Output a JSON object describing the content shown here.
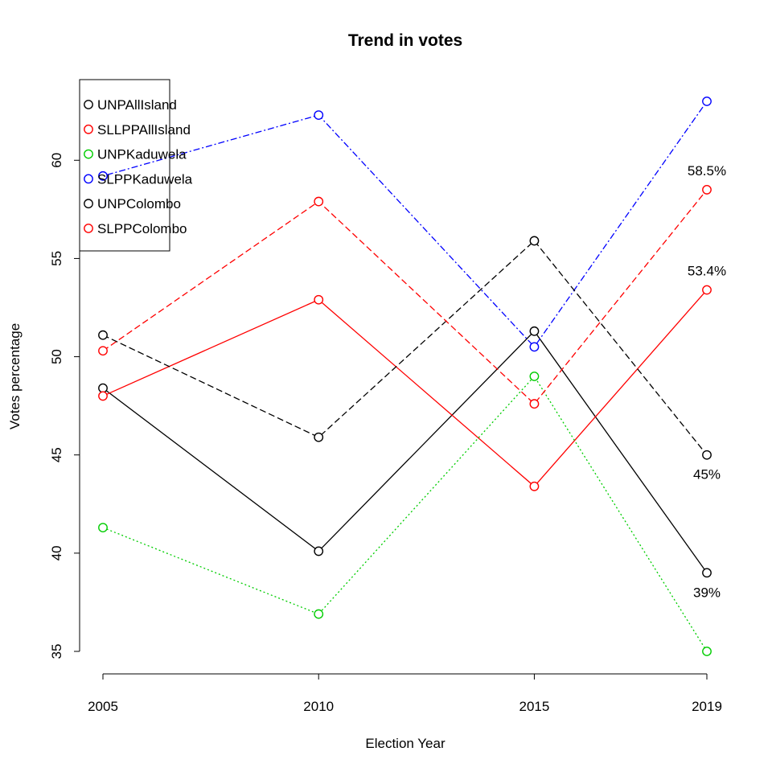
{
  "chart_data": {
    "type": "line",
    "title": "Trend in votes",
    "xlabel": "Election Year",
    "ylabel": "Votes percentage",
    "x": [
      2005,
      2010,
      2015,
      2019
    ],
    "x_tick_labels": [
      "2005",
      "2010",
      "2015",
      "2019"
    ],
    "y_ticks": [
      35,
      40,
      45,
      50,
      55,
      60
    ],
    "y_tick_labels": [
      "35",
      "40",
      "45",
      "50",
      "55",
      "60"
    ],
    "xlim": [
      2005,
      2019
    ],
    "ylim": [
      35,
      63
    ],
    "grid": false,
    "legend_position": "top-left",
    "series": [
      {
        "name": "UNPAllIsland",
        "color": "#000000",
        "dash": "solid",
        "values": [
          48.4,
          40.1,
          51.3,
          39.0
        ]
      },
      {
        "name": "SLLPPAllIsland",
        "color": "#ff0000",
        "dash": "solid",
        "values": [
          48.0,
          52.9,
          43.4,
          53.4
        ]
      },
      {
        "name": "UNPKaduwela",
        "color": "#00cd00",
        "dash": "dotted",
        "values": [
          41.3,
          36.9,
          49.0,
          35.0
        ]
      },
      {
        "name": "SLPPKaduwela",
        "color": "#0000ff",
        "dash": "dotdash",
        "values": [
          59.2,
          62.3,
          50.5,
          63.0
        ]
      },
      {
        "name": "UNPColombo",
        "color": "#000000",
        "dash": "dashed",
        "values": [
          51.1,
          45.9,
          55.9,
          45.0
        ]
      },
      {
        "name": "SLPPColombo",
        "color": "#ff0000",
        "dash": "dashed",
        "values": [
          50.3,
          57.9,
          47.6,
          58.5
        ]
      }
    ],
    "annotations": [
      {
        "text": "58.5%",
        "x": 2019,
        "y": 58.5,
        "position": "above"
      },
      {
        "text": "53.4%",
        "x": 2019,
        "y": 53.4,
        "position": "above"
      },
      {
        "text": "45%",
        "x": 2019,
        "y": 45.0,
        "position": "below"
      },
      {
        "text": "39%",
        "x": 2019,
        "y": 39.0,
        "position": "below"
      }
    ]
  }
}
